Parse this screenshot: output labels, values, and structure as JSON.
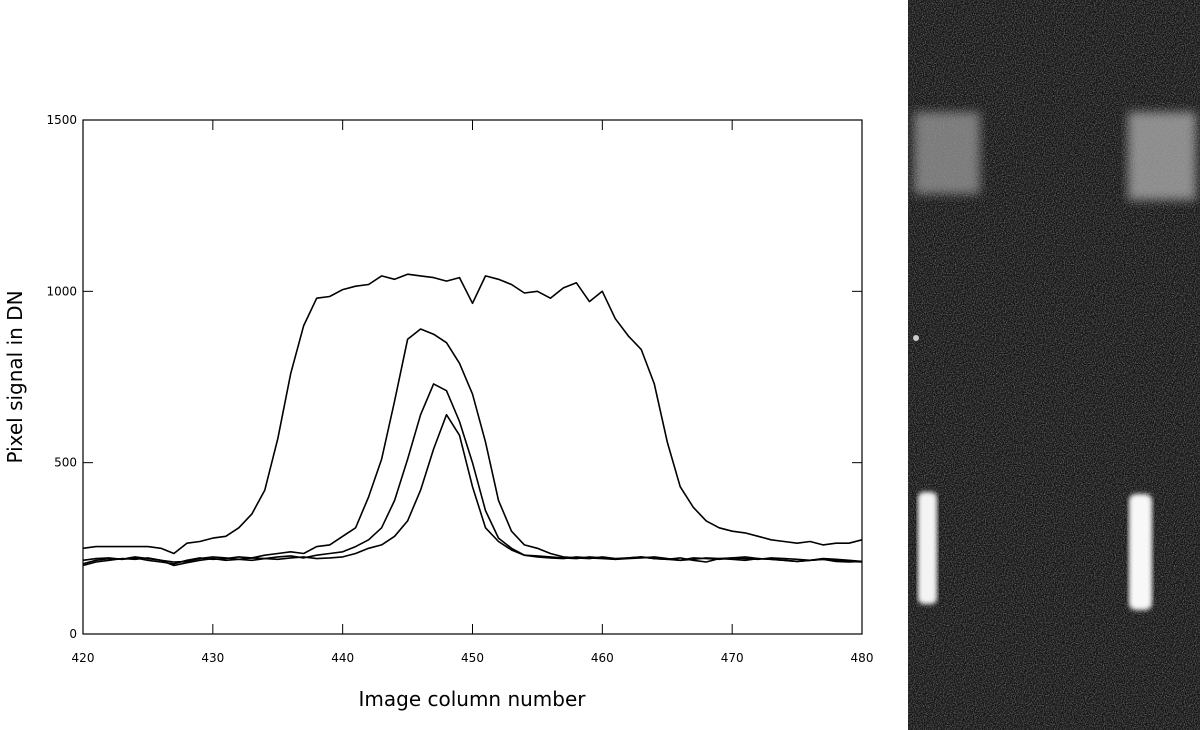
{
  "chart_data": {
    "type": "line",
    "xlabel": "Image column number",
    "ylabel": "Pixel signal in DN",
    "x": [
      420,
      421,
      422,
      423,
      424,
      425,
      426,
      427,
      428,
      429,
      430,
      431,
      432,
      433,
      434,
      435,
      436,
      437,
      438,
      439,
      440,
      441,
      442,
      443,
      444,
      445,
      446,
      447,
      448,
      449,
      450,
      451,
      452,
      453,
      454,
      455,
      456,
      457,
      458,
      459,
      460,
      461,
      462,
      463,
      464,
      465,
      466,
      467,
      468,
      469,
      470,
      471,
      472,
      473,
      474,
      475,
      476,
      477,
      478,
      479,
      480
    ],
    "series": [
      {
        "color": "#000000",
        "values": [
          250,
          255,
          255,
          255,
          255,
          255,
          250,
          235,
          265,
          270,
          280,
          285,
          310,
          350,
          420,
          570,
          760,
          900,
          980,
          985,
          1005,
          1015,
          1020,
          1045,
          1035,
          1050,
          1045,
          1040,
          1030,
          1040,
          965,
          1045,
          1035,
          1020,
          995,
          1000,
          980,
          1010,
          1025,
          970,
          1000,
          920,
          870,
          830,
          730,
          560,
          430,
          370,
          330,
          310,
          300,
          295,
          285,
          275,
          270,
          265,
          270,
          260,
          265,
          265,
          275
        ]
      },
      {
        "color": "#000000",
        "values": [
          205,
          215,
          220,
          218,
          222,
          215,
          210,
          205,
          215,
          222,
          218,
          220,
          225,
          222,
          230,
          235,
          240,
          235,
          255,
          260,
          285,
          310,
          400,
          510,
          680,
          860,
          890,
          875,
          850,
          790,
          700,
          560,
          390,
          300,
          260,
          250,
          235,
          225,
          222,
          220,
          225,
          220,
          222,
          225,
          220,
          218,
          222,
          215,
          210,
          220,
          222,
          220,
          218,
          222,
          220,
          218,
          215,
          220,
          218,
          215,
          212
        ]
      },
      {
        "color": "#000000",
        "values": [
          215,
          220,
          222,
          218,
          225,
          220,
          215,
          210,
          212,
          220,
          225,
          222,
          218,
          215,
          220,
          225,
          228,
          222,
          230,
          235,
          240,
          255,
          275,
          310,
          390,
          510,
          640,
          730,
          710,
          620,
          500,
          360,
          280,
          250,
          230,
          225,
          222,
          220,
          225,
          222,
          220,
          218,
          222,
          225,
          220,
          218,
          215,
          222,
          220,
          218,
          222,
          225,
          220,
          218,
          215,
          212,
          215,
          218,
          215,
          212,
          210
        ]
      },
      {
        "color": "#000000",
        "values": [
          200,
          210,
          215,
          220,
          218,
          222,
          215,
          200,
          208,
          215,
          220,
          215,
          218,
          222,
          220,
          218,
          222,
          225,
          220,
          222,
          225,
          235,
          250,
          260,
          285,
          330,
          420,
          540,
          640,
          580,
          430,
          310,
          270,
          245,
          230,
          228,
          225,
          222,
          220,
          225,
          222,
          218,
          220,
          222,
          225,
          220,
          215,
          218,
          222,
          220,
          218,
          215,
          220,
          218,
          215,
          212,
          215,
          218,
          212,
          210,
          212
        ]
      }
    ],
    "xlim": [
      420,
      480
    ],
    "ylim": [
      0,
      1500
    ],
    "xticks": [
      420,
      430,
      440,
      450,
      460,
      470,
      480
    ],
    "yticks": [
      0,
      500,
      1000,
      1500
    ]
  }
}
